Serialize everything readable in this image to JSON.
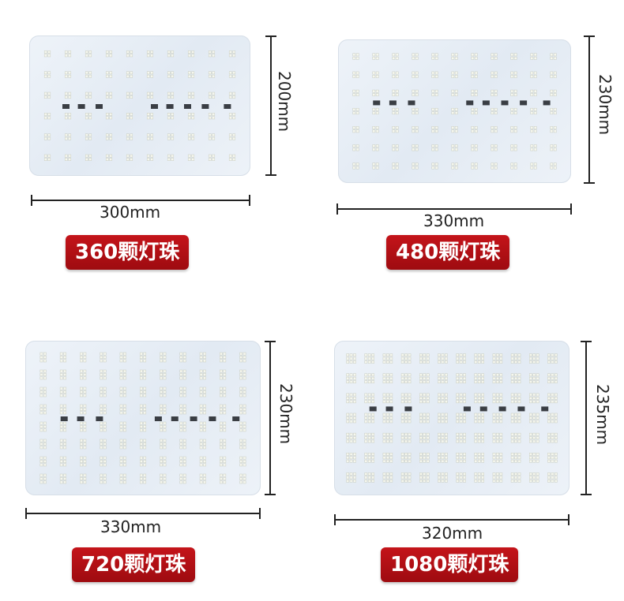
{
  "panels": [
    {
      "width_label": "300mm",
      "height_label": "200mm",
      "badge": "360颗灯珠",
      "module_cols": 10,
      "module_rows": 6
    },
    {
      "width_label": "330mm",
      "height_label": "230mm",
      "badge": "480颗灯珠",
      "module_cols": 11,
      "module_rows": 7
    },
    {
      "width_label": "330mm",
      "height_label": "230mm",
      "badge": "720颗灯珠",
      "module_cols": 11,
      "module_rows": 8
    },
    {
      "width_label": "320mm",
      "height_label": "235mm",
      "badge": "1080颗灯珠",
      "module_cols": 12,
      "module_rows": 7
    }
  ],
  "colors": {
    "badge": "#b01016",
    "board": "#e6edf5",
    "led": "#f8f9f4",
    "driver": "#3a3e44"
  }
}
